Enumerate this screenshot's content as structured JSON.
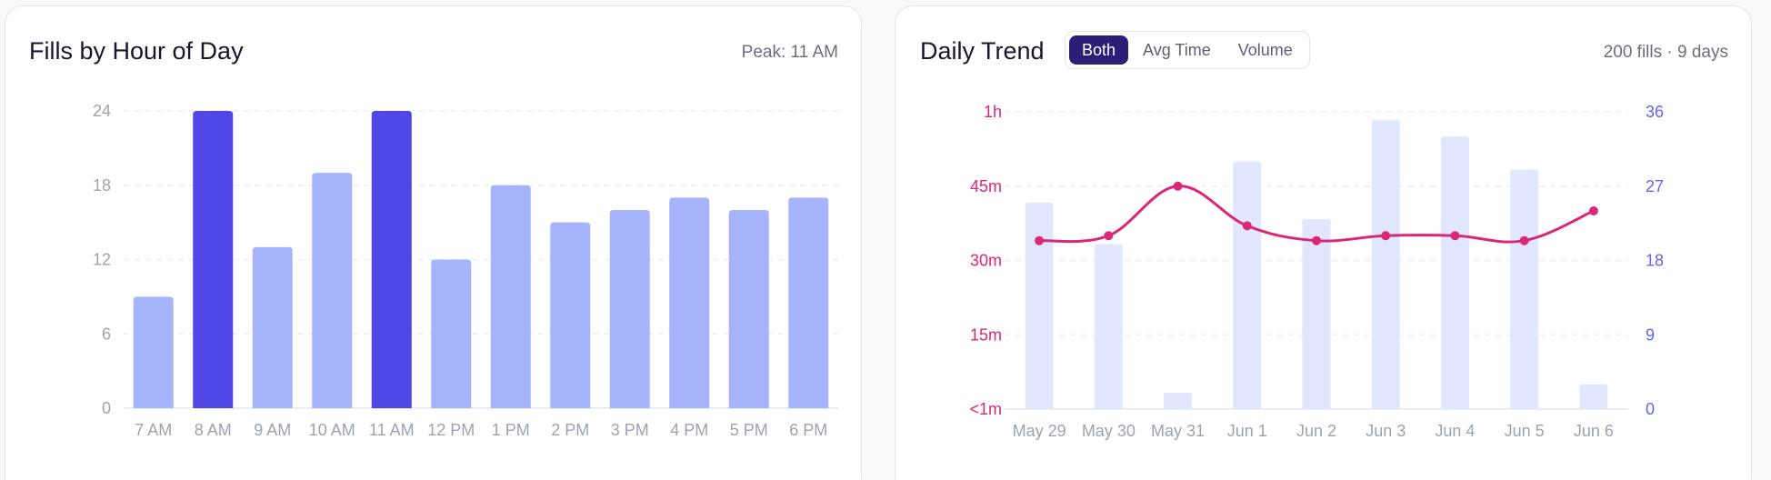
{
  "left_card": {
    "title": "Fills by Hour of Day",
    "meta": "Peak: 11 AM"
  },
  "right_card": {
    "title": "Daily Trend",
    "meta": "200 fills · 9 days",
    "toggle": [
      {
        "label": "Both",
        "active": true
      },
      {
        "label": "Avg Time",
        "active": false
      },
      {
        "label": "Volume",
        "active": false
      }
    ]
  },
  "colors": {
    "bar": "#a5b4fc",
    "bar_peak": "#4f46e5",
    "volume_bar": "#e0e7ff",
    "line": "#db2777",
    "left_axis": "#db2777",
    "right_axis": "#6366f1",
    "tick": "#9ca3af",
    "grid": "#eceef2"
  },
  "chart_data": [
    {
      "type": "bar",
      "categories": [
        "7 AM",
        "8 AM",
        "9 AM",
        "10 AM",
        "11 AM",
        "12 PM",
        "1 PM",
        "2 PM",
        "3 PM",
        "4 PM",
        "5 PM",
        "6 PM"
      ],
      "values": [
        9,
        24,
        13,
        19,
        24,
        12,
        18,
        15,
        16,
        17,
        16,
        17
      ],
      "highlight": [
        "8 AM",
        "11 AM"
      ],
      "ylim": [
        0,
        24
      ],
      "yticks": [
        0,
        6,
        12,
        18,
        24
      ],
      "grid": true
    },
    {
      "type": "line",
      "categories": [
        "May 29",
        "May 30",
        "May 31",
        "Jun 1",
        "Jun 2",
        "Jun 3",
        "Jun 4",
        "Jun 5",
        "Jun 6"
      ],
      "avg_time_minutes": [
        34,
        35,
        45,
        37,
        34,
        35,
        35,
        34,
        40
      ],
      "volume": [
        25,
        20,
        2,
        30,
        23,
        35,
        33,
        29,
        3
      ],
      "left_axis": {
        "range": [
          0,
          60
        ],
        "ticks": [
          0,
          15,
          30,
          45,
          60
        ],
        "tick_labels": [
          "<1m",
          "15m",
          "30m",
          "45m",
          "1h"
        ]
      },
      "right_axis": {
        "range": [
          0,
          36
        ],
        "ticks": [
          0,
          9,
          18,
          27,
          36
        ],
        "tick_labels": [
          "0",
          "9",
          "18",
          "27",
          "36"
        ]
      },
      "grid": true
    }
  ]
}
